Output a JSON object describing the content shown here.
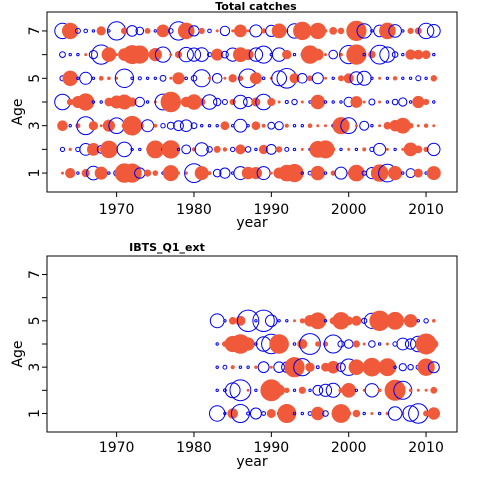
{
  "chart_data": [
    {
      "type": "scatter",
      "subtype": "bubble-residuals",
      "title": "Total catches",
      "xlabel": "year",
      "ylabel": "Age",
      "xlim": [
        1961,
        2014
      ],
      "ylim": [
        0.2,
        7.8
      ],
      "x_ticks": [
        1970,
        1980,
        1990,
        2000,
        2010
      ],
      "y_ticks": [
        1,
        2,
        3,
        4,
        5,
        6,
        7
      ],
      "y_tick_labels": [
        "1",
        "",
        "3",
        "",
        "5",
        "",
        "7"
      ],
      "years": [
        1963,
        2011
      ],
      "ages": [
        1,
        7
      ],
      "colors": {
        "positive": "#F05A3A",
        "negative": "#0000EE"
      },
      "residual_sign_convention": "positive = filled red, negative = open blue circle; size proportional to |residual| (approximate, read off bubble sizes)"
    },
    {
      "type": "scatter",
      "subtype": "bubble-residuals",
      "title": "IBTS_Q1_ext",
      "xlabel": "year",
      "ylabel": "Age",
      "xlim": [
        1961,
        2014
      ],
      "ylim": [
        0.2,
        7.8
      ],
      "x_ticks": [
        1970,
        1980,
        1990,
        2000,
        2010
      ],
      "y_ticks": [
        1,
        2,
        3,
        4,
        5,
        6,
        7
      ],
      "y_tick_labels": [
        "1",
        "",
        "3",
        "",
        "5",
        "",
        "7"
      ],
      "years": [
        1983,
        2011
      ],
      "ages": [
        1,
        5
      ],
      "colors": {
        "positive": "#F05A3A",
        "negative": "#0000EE"
      },
      "residual_sign_convention": "positive = filled red, negative = open blue circle; size proportional to |residual| (approximate)"
    }
  ]
}
